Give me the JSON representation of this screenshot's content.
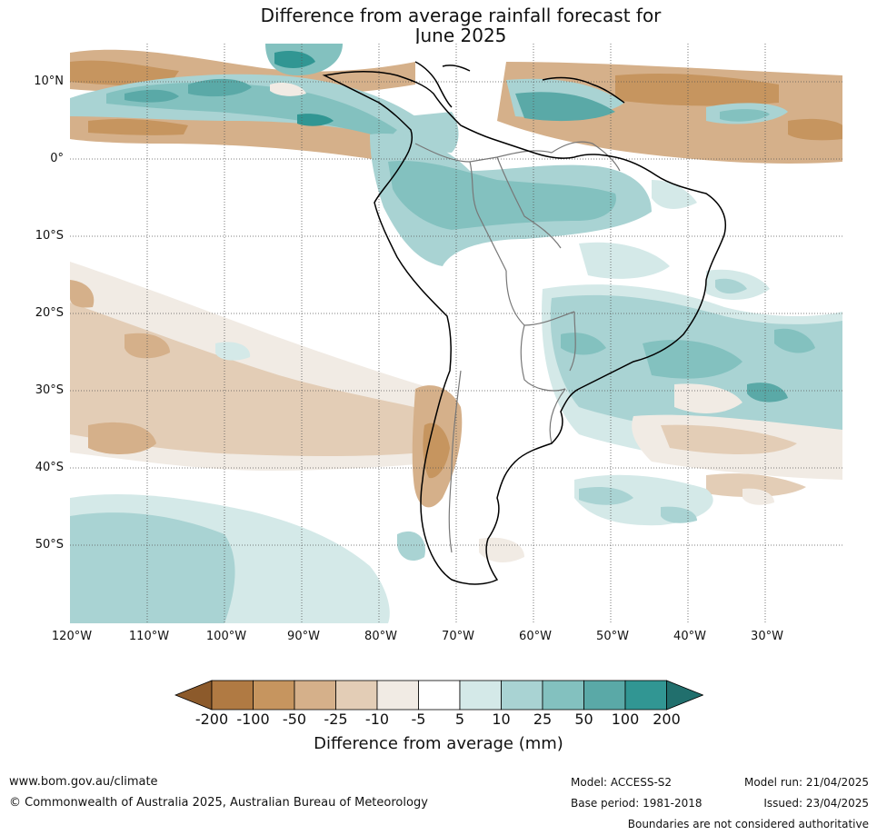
{
  "title_line1": "Difference from average rainfall forecast for",
  "title_line2": "June 2025",
  "lat_labels": [
    "10°N",
    "0°",
    "10°S",
    "20°S",
    "30°S",
    "40°S",
    "50°S"
  ],
  "lon_labels": [
    "120°W",
    "110°W",
    "100°W",
    "90°W",
    "80°W",
    "70°W",
    "60°W",
    "50°W",
    "40°W",
    "30°W"
  ],
  "colorbar": {
    "ticks": [
      "-200",
      "-100",
      "-50",
      "-25",
      "-10",
      "-5",
      "5",
      "10",
      "25",
      "50",
      "100",
      "200"
    ],
    "colors": [
      "#8c5a2b",
      "#b07a43",
      "#c6955f",
      "#d5b08a",
      "#e3cdb6",
      "#f1ebe4",
      "#ffffff",
      "#d4e9e8",
      "#a9d3d3",
      "#83c1bf",
      "#5aa9a7",
      "#319693",
      "#216f6d"
    ],
    "label": "Difference from average (mm)"
  },
  "footer": {
    "website": "www.bom.gov.au/climate",
    "copyright": "© Commonwealth of Australia 2025, Australian Bureau of Meteorology",
    "model": "Model: ACCESS-S2",
    "base_period": "Base period: 1981-2018",
    "model_run": "Model run: 21/04/2025",
    "issued": "Issued: 23/04/2025",
    "disclaimer": "Boundaries are not considered authoritative"
  }
}
